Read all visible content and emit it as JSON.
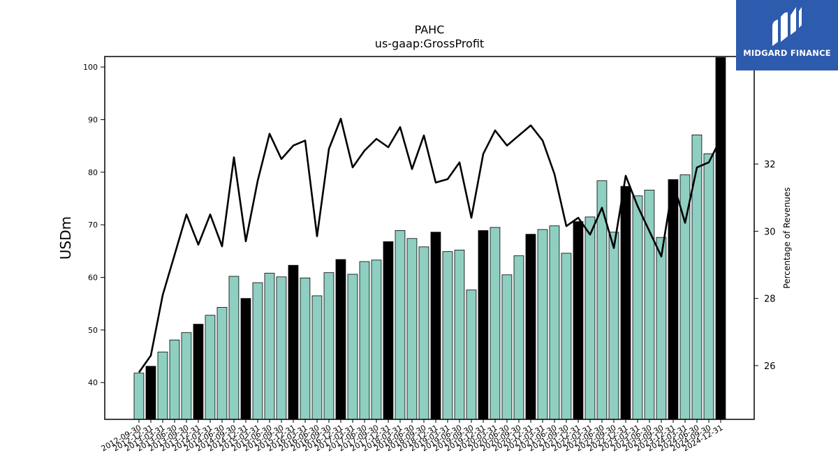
{
  "chart_data": {
    "type": "bar",
    "title": "PAHC",
    "subtitle": "us-gaap:GrossProfit",
    "ylabel": "USDm",
    "y2label": "Percentage of Revenues",
    "ylim": [
      33,
      102
    ],
    "y2lim": [
      24.4,
      35.2
    ],
    "yticks": [
      40,
      50,
      60,
      70,
      80,
      90,
      100
    ],
    "y2ticks": [
      26,
      28,
      30,
      32
    ],
    "categories": [
      "2012-09-30",
      "2012-12-31",
      "2013-03-31",
      "2013-06-30",
      "2013-09-30",
      "2013-12-31",
      "2014-03-31",
      "2014-06-30",
      "2014-09-30",
      "2014-12-31",
      "2015-03-31",
      "2015-06-30",
      "2015-09-30",
      "2015-12-31",
      "2016-03-31",
      "2016-06-30",
      "2016-09-30",
      "2016-12-31",
      "2017-03-31",
      "2017-06-30",
      "2017-09-30",
      "2017-12-31",
      "2018-03-31",
      "2018-06-30",
      "2018-09-30",
      "2018-12-31",
      "2019-03-31",
      "2019-06-30",
      "2019-09-30",
      "2019-12-31",
      "2020-03-31",
      "2020-06-30",
      "2020-09-30",
      "2020-12-31",
      "2021-03-31",
      "2021-06-30",
      "2021-09-30",
      "2021-12-31",
      "2022-03-31",
      "2022-06-30",
      "2022-09-30",
      "2022-12-31",
      "2023-03-31",
      "2023-06-30",
      "2023-09-30",
      "2023-12-31",
      "2024-03-31",
      "2024-06-30",
      "2024-09-30",
      "2024-12-31"
    ],
    "series": [
      {
        "type": "bar",
        "values": [
          41.8,
          43.1,
          45.8,
          48.1,
          49.5,
          51.1,
          52.8,
          54.3,
          60.2,
          56.0,
          59.0,
          60.8,
          60.1,
          62.3,
          59.9,
          56.5,
          60.9,
          63.4,
          60.6,
          63.0,
          63.3,
          66.8,
          68.9,
          67.4,
          65.8,
          68.6,
          64.9,
          65.2,
          57.6,
          68.9,
          69.5,
          60.5,
          64.1,
          68.2,
          69.1,
          69.8,
          64.6,
          70.6,
          71.5,
          78.4,
          68.6,
          77.3,
          75.5,
          76.6,
          67.6,
          78.6,
          79.5,
          87.1,
          83.5,
          101.8
        ]
      },
      {
        "type": "line",
        "axis": "right",
        "values": [
          25.8,
          26.3,
          28.1,
          29.3,
          30.5,
          29.6,
          30.5,
          29.55,
          32.2,
          29.7,
          31.5,
          32.9,
          32.15,
          32.55,
          32.7,
          29.85,
          32.45,
          33.35,
          31.9,
          32.4,
          32.75,
          32.5,
          33.1,
          31.85,
          32.85,
          31.45,
          31.55,
          32.05,
          30.4,
          32.3,
          33.0,
          32.55,
          32.85,
          33.15,
          32.7,
          31.7,
          30.15,
          30.4,
          29.9,
          30.7,
          29.5,
          31.65,
          30.75,
          30.0,
          29.25,
          31.45,
          30.25,
          31.9,
          32.05,
          32.75
        ]
      }
    ],
    "highlight_quarter": "12-31",
    "colors": {
      "bar": "#8ecfc2",
      "highlight": "#000000",
      "line": "#000000",
      "edge": "#000000"
    }
  },
  "logo": {
    "text": "MIDGARD FINANCE",
    "background": "#2d5bad"
  }
}
